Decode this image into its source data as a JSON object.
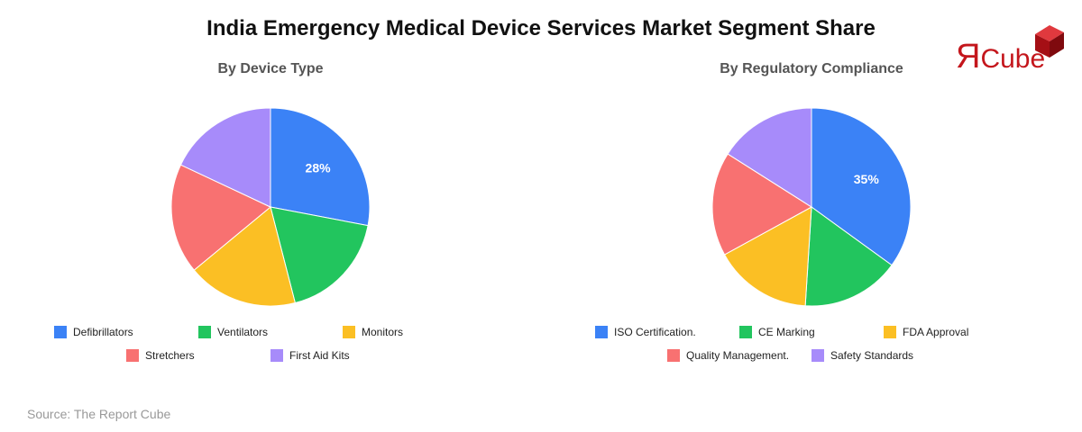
{
  "title": "India Emergency Medical Device Services Market Segment Share",
  "logo": {
    "text_r": "Я",
    "text_rest": "Cube"
  },
  "source": "Source: The Report Cube",
  "chart_data": [
    {
      "type": "pie",
      "title": "By Device Type",
      "labels": [
        "Defibrillators",
        "Ventilators",
        "Monitors",
        "Stretchers",
        "First Aid Kits"
      ],
      "values": [
        28,
        18,
        18,
        18,
        18
      ],
      "colors": [
        "#3b82f6",
        "#22c55e",
        "#fbbf24",
        "#f87171",
        "#a78bfa"
      ],
      "data_labels": [
        "28%",
        "",
        "",
        "",
        ""
      ]
    },
    {
      "type": "pie",
      "title": "By Regulatory Compliance",
      "labels": [
        "ISO Certification.",
        "CE Marking",
        "FDA Approval",
        "Quality Management.",
        "Safety Standards"
      ],
      "values": [
        35,
        16,
        16,
        17,
        16
      ],
      "colors": [
        "#3b82f6",
        "#22c55e",
        "#fbbf24",
        "#f87171",
        "#a78bfa"
      ],
      "data_labels": [
        "35%",
        "",
        "",
        "",
        ""
      ]
    }
  ]
}
